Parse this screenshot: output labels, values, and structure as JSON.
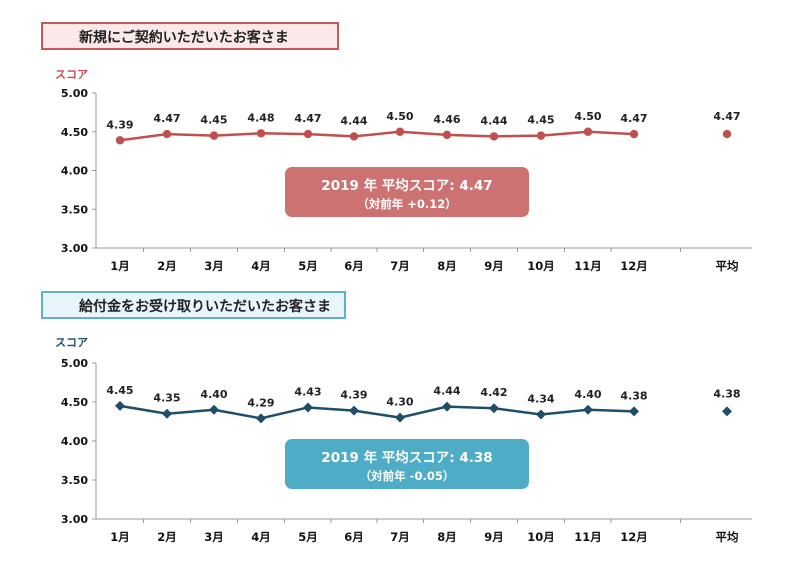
{
  "charts": {
    "c1": {
      "title": "新規にご契約いただいたお客さま",
      "badge": {
        "main": "2019 年 平均スコア: 4.47",
        "sub": "（対前年 +0.12）"
      }
    },
    "c2": {
      "title": "給付金をお受け取りいただいたお客さま",
      "badge": {
        "main": "2019 年 平均スコア: 4.38",
        "sub": "（対前年 -0.05）"
      }
    }
  },
  "chart_data": [
    {
      "type": "line",
      "title": "新規にご契約いただいたお客さま",
      "ylabel": "スコア",
      "ylim": [
        3.0,
        5.0
      ],
      "yticks": [
        "5.00",
        "4.50",
        "4.00",
        "3.50",
        "3.00"
      ],
      "categories": [
        "1月",
        "2月",
        "3月",
        "4月",
        "5月",
        "6月",
        "7月",
        "8月",
        "9月",
        "10月",
        "11月",
        "12月"
      ],
      "values": [
        4.39,
        4.47,
        4.45,
        4.48,
        4.47,
        4.44,
        4.5,
        4.46,
        4.44,
        4.45,
        4.5,
        4.47
      ],
      "average": {
        "label": "平均",
        "value": 4.47
      },
      "color": "#c0504d",
      "marker": "circle"
    },
    {
      "type": "line",
      "title": "給付金をお受け取りいただいたお客さま",
      "ylabel": "スコア",
      "ylim": [
        3.0,
        5.0
      ],
      "yticks": [
        "5.00",
        "4.50",
        "4.00",
        "3.50",
        "3.00"
      ],
      "categories": [
        "1月",
        "2月",
        "3月",
        "4月",
        "5月",
        "6月",
        "7月",
        "8月",
        "9月",
        "10月",
        "11月",
        "12月"
      ],
      "values": [
        4.45,
        4.35,
        4.4,
        4.29,
        4.43,
        4.39,
        4.3,
        4.44,
        4.42,
        4.34,
        4.4,
        4.38
      ],
      "average": {
        "label": "平均",
        "value": 4.38
      },
      "color": "#1f4e6b",
      "marker": "diamond"
    }
  ]
}
